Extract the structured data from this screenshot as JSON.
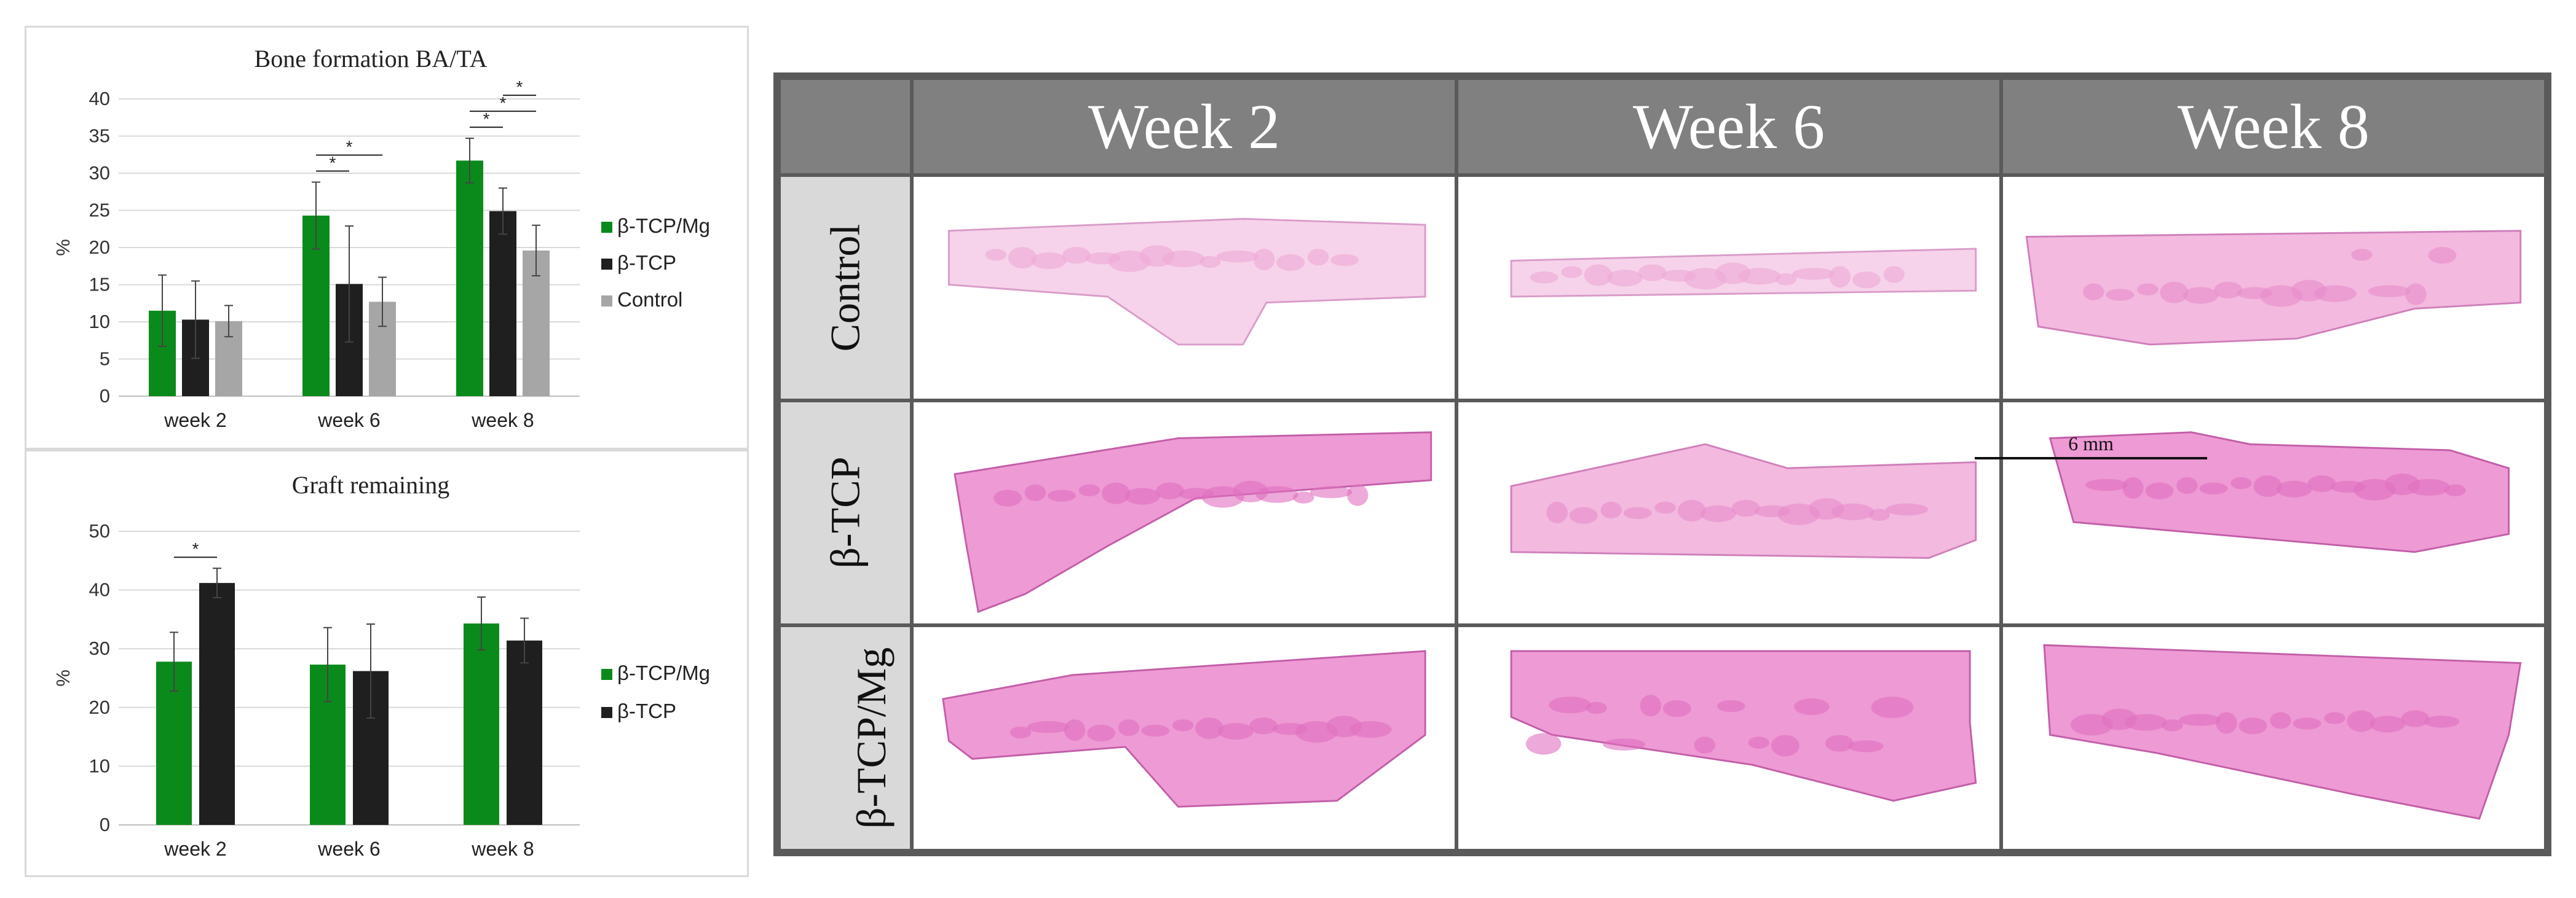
{
  "chart_data": [
    {
      "type": "bar",
      "title": "Bone formation BA/TA",
      "ylabel": "%",
      "ylim": [
        0,
        40
      ],
      "yticks": [
        0,
        5,
        10,
        15,
        20,
        25,
        30,
        35,
        40
      ],
      "categories": [
        "week 2",
        "week 6",
        "week 8"
      ],
      "legend_position": "right",
      "series": [
        {
          "name": "β-TCP/Mg",
          "color": "#0b8a1c",
          "values": [
            11.5,
            24.3,
            31.7
          ],
          "errors": [
            4.8,
            4.5,
            3.0
          ]
        },
        {
          "name": "β-TCP",
          "color": "#1f1f1f",
          "values": [
            10.3,
            15.1,
            24.9
          ],
          "errors": [
            5.2,
            7.8,
            3.1
          ]
        },
        {
          "name": "Control",
          "color": "#a6a6a6",
          "values": [
            10.1,
            12.7,
            19.6
          ],
          "errors": [
            2.1,
            3.3,
            3.4
          ]
        }
      ],
      "significance": [
        {
          "category": "week 6",
          "pairs": [
            [
              "β-TCP/Mg",
              "β-TCP"
            ],
            [
              "β-TCP/Mg",
              "Control"
            ]
          ],
          "label": "*"
        },
        {
          "category": "week 8",
          "pairs": [
            [
              "β-TCP/Mg",
              "β-TCP"
            ],
            [
              "β-TCP/Mg",
              "Control"
            ],
            [
              "β-TCP",
              "Control"
            ]
          ],
          "label": "*"
        }
      ]
    },
    {
      "type": "bar",
      "title": "Graft remaining",
      "ylabel": "%",
      "ylim": [
        0,
        50
      ],
      "yticks": [
        0,
        10,
        20,
        30,
        40,
        50
      ],
      "categories": [
        "week 2",
        "week 6",
        "week 8"
      ],
      "legend_position": "right",
      "series": [
        {
          "name": "β-TCP/Mg",
          "color": "#0b8a1c",
          "values": [
            27.8,
            27.3,
            34.3
          ],
          "errors": [
            5.0,
            6.3,
            4.5
          ]
        },
        {
          "name": "β-TCP",
          "color": "#1f1f1f",
          "values": [
            41.2,
            26.2,
            31.4
          ],
          "errors": [
            2.5,
            8.0,
            3.8
          ]
        }
      ],
      "significance": [
        {
          "category": "week 2",
          "pairs": [
            [
              "β-TCP/Mg",
              "β-TCP"
            ]
          ],
          "label": "*"
        }
      ]
    }
  ],
  "histology": {
    "columns": [
      "Week 2",
      "Week 6",
      "Week 8"
    ],
    "rows": [
      "Control",
      "β-TCP",
      "β-TCP/Mg"
    ],
    "scale_bar": "6 mm"
  }
}
